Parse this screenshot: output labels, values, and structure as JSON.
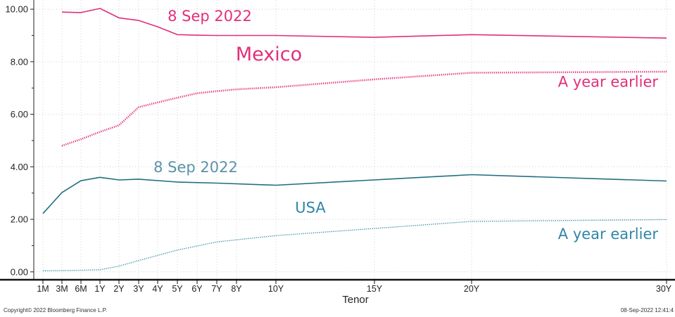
{
  "chart_data": {
    "type": "line",
    "xlabel": "Tenor",
    "ylabel": "",
    "ylim": [
      -0.3,
      10.35
    ],
    "x_categories": [
      "1M",
      "3M",
      "6M",
      "1Y",
      "2Y",
      "3Y",
      "4Y",
      "5Y",
      "6Y",
      "7Y",
      "8Y",
      "10Y",
      "15Y",
      "20Y",
      "30Y"
    ],
    "y_ticks": [
      "0.00",
      "2.00",
      "4.00",
      "6.00",
      "8.00",
      "10.00"
    ],
    "series": [
      {
        "name": "8 Sep 2022",
        "group": "Mexico",
        "color": "#e0307a",
        "style": "solid",
        "points": [
          {
            "tenor": "3M",
            "value": 9.89
          },
          {
            "tenor": "6M",
            "value": 9.87
          },
          {
            "tenor": "1Y",
            "value": 10.03
          },
          {
            "tenor": "2Y",
            "value": 9.67
          },
          {
            "tenor": "3Y",
            "value": 9.57
          },
          {
            "tenor": "4Y",
            "value": 9.33
          },
          {
            "tenor": "5Y",
            "value": 9.03
          },
          {
            "tenor": "6Y",
            "value": 9.01
          },
          {
            "tenor": "7Y",
            "value": 9.0
          },
          {
            "tenor": "8Y",
            "value": 9.0
          },
          {
            "tenor": "10Y",
            "value": 9.0
          },
          {
            "tenor": "15Y",
            "value": 8.93
          },
          {
            "tenor": "20Y",
            "value": 9.03
          },
          {
            "tenor": "30Y",
            "value": 8.9
          }
        ]
      },
      {
        "name": "A year earlier",
        "group": "Mexico",
        "color": "#e0307a",
        "style": "dotted",
        "points": [
          {
            "tenor": "3M",
            "value": 4.8
          },
          {
            "tenor": "6M",
            "value": 5.05
          },
          {
            "tenor": "1Y",
            "value": 5.33
          },
          {
            "tenor": "2Y",
            "value": 5.58
          },
          {
            "tenor": "3Y",
            "value": 6.27
          },
          {
            "tenor": "4Y",
            "value": 6.45
          },
          {
            "tenor": "5Y",
            "value": 6.63
          },
          {
            "tenor": "6Y",
            "value": 6.8
          },
          {
            "tenor": "7Y",
            "value": 6.88
          },
          {
            "tenor": "8Y",
            "value": 6.95
          },
          {
            "tenor": "10Y",
            "value": 7.03
          },
          {
            "tenor": "15Y",
            "value": 7.33
          },
          {
            "tenor": "20Y",
            "value": 7.58
          },
          {
            "tenor": "30Y",
            "value": 7.62
          }
        ]
      },
      {
        "name": "8 Sep 2022",
        "group": "USA",
        "color": "#1f6f7f",
        "style": "solid",
        "points": [
          {
            "tenor": "1M",
            "value": 2.22
          },
          {
            "tenor": "3M",
            "value": 3.02
          },
          {
            "tenor": "6M",
            "value": 3.47
          },
          {
            "tenor": "1Y",
            "value": 3.6
          },
          {
            "tenor": "2Y",
            "value": 3.5
          },
          {
            "tenor": "3Y",
            "value": 3.53
          },
          {
            "tenor": "5Y",
            "value": 3.42
          },
          {
            "tenor": "7Y",
            "value": 3.38
          },
          {
            "tenor": "10Y",
            "value": 3.3
          },
          {
            "tenor": "20Y",
            "value": 3.7
          },
          {
            "tenor": "30Y",
            "value": 3.46
          }
        ]
      },
      {
        "name": "A year earlier",
        "group": "USA",
        "color": "#2f86a6",
        "style": "dotted",
        "points": [
          {
            "tenor": "1M",
            "value": 0.04
          },
          {
            "tenor": "3M",
            "value": 0.05
          },
          {
            "tenor": "6M",
            "value": 0.06
          },
          {
            "tenor": "1Y",
            "value": 0.08
          },
          {
            "tenor": "2Y",
            "value": 0.22
          },
          {
            "tenor": "3Y",
            "value": 0.43
          },
          {
            "tenor": "5Y",
            "value": 0.83
          },
          {
            "tenor": "7Y",
            "value": 1.14
          },
          {
            "tenor": "10Y",
            "value": 1.38
          },
          {
            "tenor": "20Y",
            "value": 1.92
          },
          {
            "tenor": "30Y",
            "value": 1.99
          }
        ]
      }
    ],
    "annotations": [
      {
        "text": "8 Sep 2022",
        "color": "#e0307a",
        "anchor": {
          "tenor": "4Y",
          "value": 9.55
        },
        "size": "medium"
      },
      {
        "text": "Mexico",
        "color": "#e0307a",
        "anchor": {
          "tenor": "8Y",
          "value": 8.05
        },
        "size": "large"
      },
      {
        "text": "A year earlier",
        "color": "#e0307a",
        "anchor": {
          "tenor": "30Y",
          "value": 7.05
        },
        "size": "medium"
      },
      {
        "text": "8 Sep 2022",
        "color": "#5a93a8",
        "anchor": {
          "tenor": "3Y",
          "value": 3.8
        },
        "size": "medium"
      },
      {
        "text": "USA",
        "color": "#2f86a6",
        "anchor": {
          "tenor": "10Y",
          "value": 2.25
        },
        "size": "medium"
      },
      {
        "text": "A year earlier",
        "color": "#2f86a6",
        "anchor": {
          "tenor": "30Y",
          "value": 1.25
        },
        "size": "medium"
      }
    ],
    "grid": true,
    "legend": "none"
  },
  "footer": {
    "copyright": "Copyright© 2022 Bloomberg Finance L.P.",
    "timestamp": "08-Sep-2022 12:41:4"
  }
}
